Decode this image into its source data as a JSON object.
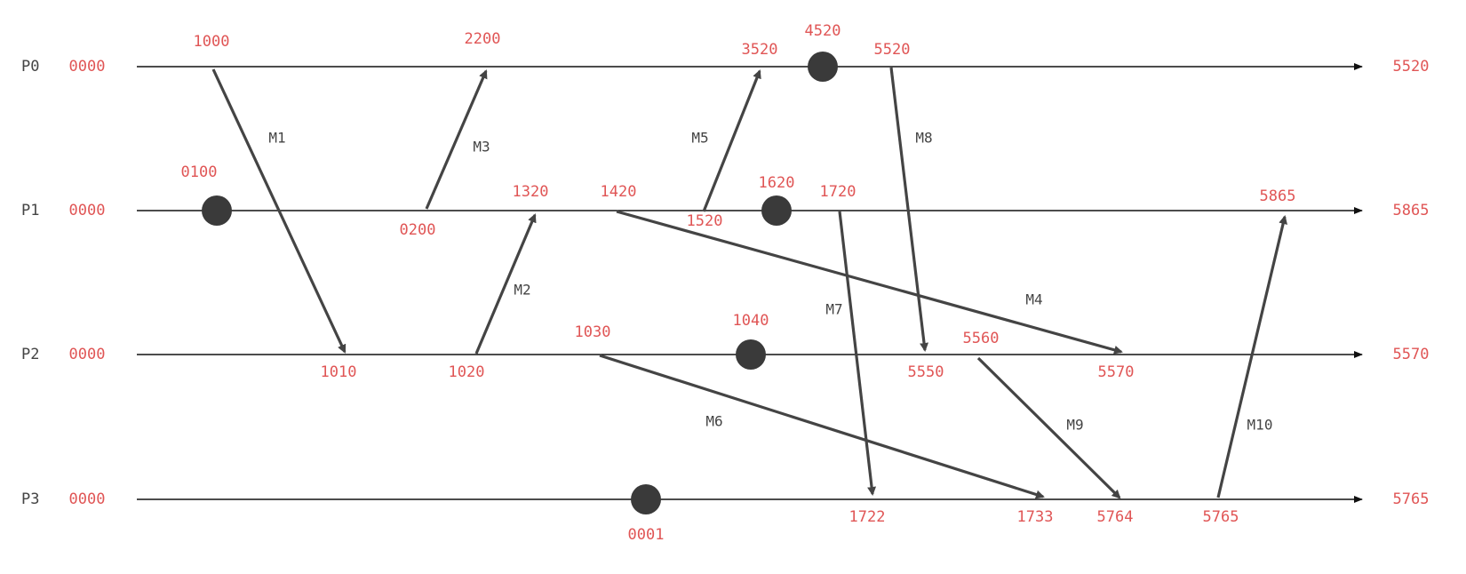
{
  "colors": {
    "line": "#111111",
    "arrow": "#444444",
    "dot": "#3a3a3a",
    "timestamp": "#e05555",
    "label": "#444444"
  },
  "processes": [
    {
      "id": "P0",
      "start": "0000",
      "end": "5520"
    },
    {
      "id": "P1",
      "start": "0000",
      "end": "5865"
    },
    {
      "id": "P2",
      "start": "0000",
      "end": "5570"
    },
    {
      "id": "P3",
      "start": "0000",
      "end": "5765"
    }
  ],
  "internal_events": [
    {
      "process": "P0",
      "label": "4520"
    },
    {
      "process": "P1",
      "label": "0100"
    },
    {
      "process": "P1",
      "label": "1620"
    },
    {
      "process": "P2",
      "label": "1040"
    },
    {
      "process": "P3",
      "label": "0001"
    }
  ],
  "messages": [
    {
      "name": "M1",
      "from": "P0",
      "to": "P2",
      "send": "1000",
      "recv": "1010"
    },
    {
      "name": "M2",
      "from": "P2",
      "to": "P1",
      "send": "1020",
      "recv": "1320"
    },
    {
      "name": "M3",
      "from": "P1",
      "to": "P0",
      "send": "0200",
      "recv": "2200"
    },
    {
      "name": "M4",
      "from": "P1",
      "to": "P2",
      "send": "1420",
      "recv": "5570"
    },
    {
      "name": "M5",
      "from": "P1",
      "to": "P0",
      "send": "1520",
      "recv": "3520"
    },
    {
      "name": "M6",
      "from": "P2",
      "to": "P3",
      "send": "1030",
      "recv": "1733"
    },
    {
      "name": "M7",
      "from": "P1",
      "to": "P3",
      "send": "1720",
      "recv": "1722"
    },
    {
      "name": "M8",
      "from": "P0",
      "to": "P2",
      "send": "5520",
      "recv": "5550"
    },
    {
      "name": "M9",
      "from": "P2",
      "to": "P3",
      "send": "5560",
      "recv": "5764"
    },
    {
      "name": "M10",
      "from": "P3",
      "to": "P1",
      "send": "5765",
      "recv": "5865"
    }
  ]
}
